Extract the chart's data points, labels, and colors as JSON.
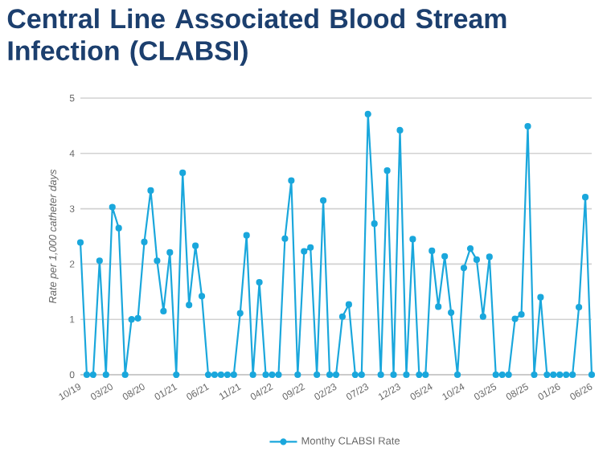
{
  "chart_data": {
    "type": "line",
    "title": "Central Line Associated Blood Stream Infection (CLABSI)",
    "ylabel": "Rate per 1,000 catheter days",
    "categories": [
      "10/19",
      null,
      null,
      null,
      null,
      "03/20",
      null,
      null,
      null,
      null,
      "08/20",
      null,
      null,
      null,
      null,
      "01/21",
      null,
      null,
      null,
      null,
      "06/21",
      null,
      null,
      null,
      null,
      "11/21",
      null,
      null,
      null,
      null,
      "04/22",
      null,
      null,
      null,
      null,
      "09/22",
      null,
      null,
      null,
      null,
      "02/23",
      null,
      null,
      null,
      null,
      "07/23",
      null,
      null,
      null,
      null,
      "12/23",
      null,
      null,
      null,
      null,
      "05/24",
      null,
      null,
      null,
      null,
      "10/24",
      null,
      null,
      null,
      null,
      "03/25",
      null,
      null,
      null,
      null,
      "08/25",
      null,
      null,
      null,
      null,
      "01/26",
      null,
      null,
      null,
      null,
      "06/26"
    ],
    "series": [
      {
        "name": "Monthy CLABSI Rate",
        "color": "#1aa7dc",
        "values": [
          2.39,
          0,
          0,
          2.06,
          0,
          3.03,
          2.65,
          0,
          1.0,
          1.02,
          2.4,
          3.33,
          2.06,
          1.15,
          2.21,
          0,
          3.65,
          1.26,
          2.33,
          1.42,
          0,
          0,
          0,
          0,
          0,
          1.11,
          2.52,
          0,
          1.67,
          0,
          0,
          0,
          2.46,
          3.51,
          0,
          2.23,
          2.3,
          0,
          3.15,
          0,
          0,
          1.05,
          1.27,
          0,
          0,
          4.71,
          2.73,
          0,
          3.69,
          0,
          4.42,
          0,
          2.45,
          0,
          0,
          2.24,
          1.23,
          2.14,
          1.12,
          0,
          1.93,
          2.28,
          2.08,
          1.05,
          2.13,
          0,
          0,
          0,
          1.01,
          1.09,
          4.49,
          0,
          1.4,
          0,
          0,
          0,
          0,
          0,
          1.22,
          3.21,
          0
        ]
      }
    ],
    "ylim": [
      0,
      5
    ],
    "yticks": [
      0,
      1,
      2,
      3,
      4,
      5
    ],
    "grid": "y",
    "legend": "bottom",
    "marker": "circle",
    "line_style": "solid"
  }
}
